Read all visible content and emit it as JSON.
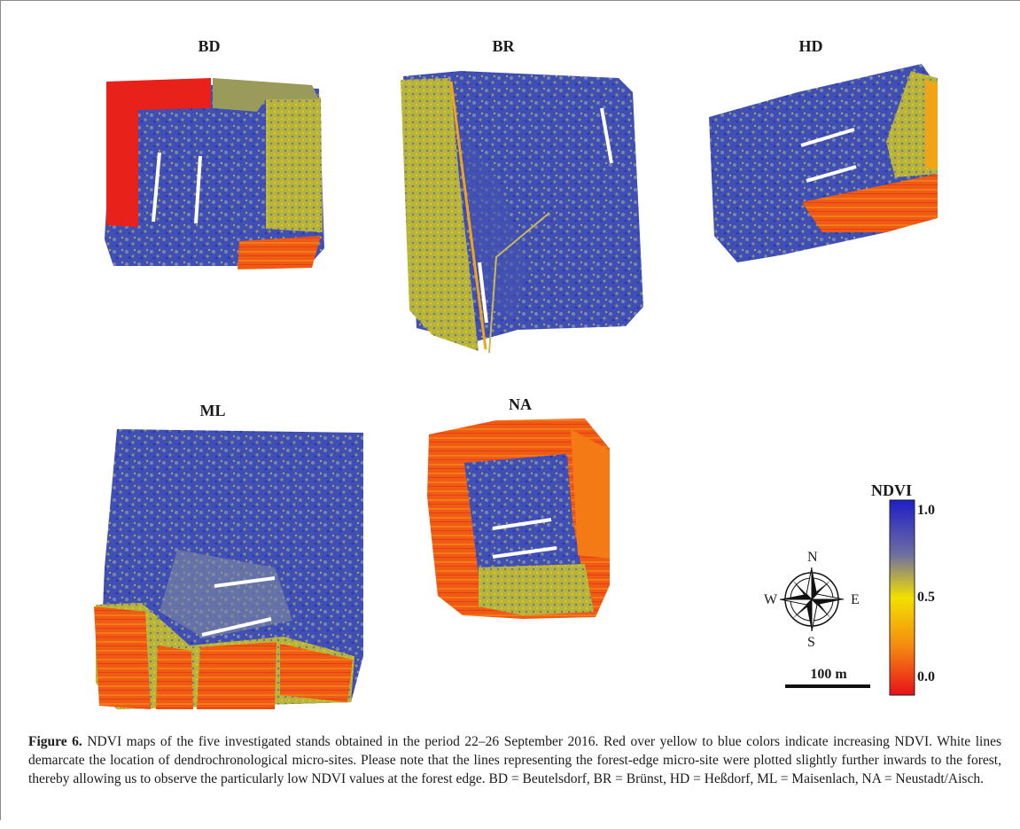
{
  "panels": [
    {
      "code": "BD"
    },
    {
      "code": "BR"
    },
    {
      "code": "HD"
    },
    {
      "code": "ML"
    },
    {
      "code": "NA"
    }
  ],
  "legend": {
    "title": "NDVI",
    "ticks": [
      "1.0",
      "0.5",
      "0.0"
    ],
    "colors": [
      "#1e1ec8",
      "#f2e000",
      "#e8101a"
    ]
  },
  "compass": {
    "n": "N",
    "e": "E",
    "s": "S",
    "w": "W"
  },
  "scale_bar": {
    "label": "100 m"
  },
  "caption": {
    "label": "Figure 6.",
    "text": " NDVI maps of the five investigated stands obtained in the period 22–26 September 2016. Red over yellow to blue colors indicate increasing NDVI. White lines demarcate the location of dendrochronological micro-sites. Please note that the lines representing the forest-edge micro-site were plotted slightly further inwards to the forest, thereby allowing us to observe the particularly low NDVI values at the forest edge. BD = Beutelsdorf, BR = Brünst, HD = Heßdorf, ML = Maisenlach, NA = Neustadt/Aisch."
  }
}
